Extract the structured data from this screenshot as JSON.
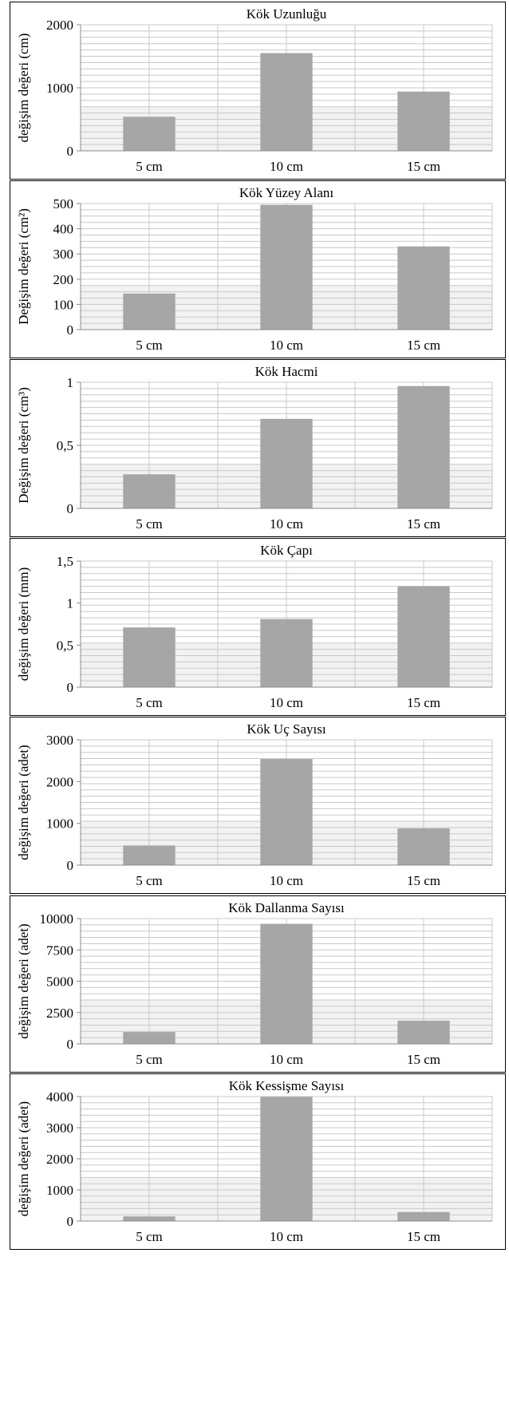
{
  "colors": {
    "bar": "#a6a6a6",
    "grid": "#c8c8c8",
    "axis": "#8c8c8c",
    "plot_band": "#f2f2f2",
    "text": "#000000"
  },
  "chart_data": [
    {
      "type": "bar",
      "title": "Kök Uzunluğu",
      "ylabel": "değişim değeri (cm)",
      "categories": [
        "5 cm",
        "10 cm",
        "15 cm"
      ],
      "values": [
        540,
        1550,
        940
      ],
      "ylim": [
        0,
        2000
      ],
      "yticks": [
        0,
        1000,
        2000
      ],
      "ytick_labels": [
        "0",
        "1000",
        "2000"
      ],
      "grid": true
    },
    {
      "type": "bar",
      "title": "Kök Yüzey Alanı",
      "ylabel": "Değişim değeri (cm²)",
      "categories": [
        "5 cm",
        "10 cm",
        "15 cm"
      ],
      "values": [
        143,
        495,
        330
      ],
      "ylim": [
        0,
        500
      ],
      "yticks": [
        0,
        100,
        200,
        300,
        400,
        500
      ],
      "ytick_labels": [
        "0",
        "100",
        "200",
        "300",
        "400",
        "500"
      ],
      "grid": true
    },
    {
      "type": "bar",
      "title": "Kök Hacmi",
      "ylabel": "Değişim değeri (cm³)",
      "categories": [
        "5 cm",
        "10 cm",
        "15 cm"
      ],
      "values": [
        0.27,
        0.71,
        0.97
      ],
      "ylim": [
        0,
        1
      ],
      "yticks": [
        0,
        0.5,
        1
      ],
      "ytick_labels": [
        "0",
        "0,5",
        "1"
      ],
      "grid": true
    },
    {
      "type": "bar",
      "title": "Kök Çapı",
      "ylabel": "değişim değeri (mm)",
      "categories": [
        "5 cm",
        "10 cm",
        "15 cm"
      ],
      "values": [
        0.71,
        0.81,
        1.2
      ],
      "ylim": [
        0,
        1.5
      ],
      "yticks": [
        0,
        0.5,
        1,
        1.5
      ],
      "ytick_labels": [
        "0",
        "0,5",
        "1",
        "1,5"
      ],
      "grid": true
    },
    {
      "type": "bar",
      "title": "Kök Uç Sayısı",
      "ylabel": "değişim değeri (adet)",
      "categories": [
        "5 cm",
        "10 cm",
        "15 cm"
      ],
      "values": [
        470,
        2540,
        880
      ],
      "ylim": [
        0,
        3000
      ],
      "yticks": [
        0,
        1000,
        2000,
        3000
      ],
      "ytick_labels": [
        "0",
        "1000",
        "2000",
        "3000"
      ],
      "grid": true
    },
    {
      "type": "bar",
      "title": "Kök Dallanma Sayısı",
      "ylabel": "değişim değeri (adet)",
      "categories": [
        "5 cm",
        "10 cm",
        "15 cm"
      ],
      "values": [
        950,
        9580,
        1850
      ],
      "ylim": [
        0,
        10000
      ],
      "yticks": [
        0,
        2500,
        5000,
        7500,
        10000
      ],
      "ytick_labels": [
        "0",
        "2500",
        "5000",
        "7500",
        "10000"
      ],
      "grid": true
    },
    {
      "type": "bar",
      "title": "Kök Kessişme Sayısı",
      "ylabel": "değişim değeri (adet)",
      "categories": [
        "5 cm",
        "10 cm",
        "15 cm"
      ],
      "values": [
        150,
        3990,
        290
      ],
      "ylim": [
        0,
        4000
      ],
      "yticks": [
        0,
        1000,
        2000,
        3000,
        4000
      ],
      "ytick_labels": [
        "0",
        "1000",
        "2000",
        "3000",
        "4000"
      ],
      "grid": true
    }
  ]
}
